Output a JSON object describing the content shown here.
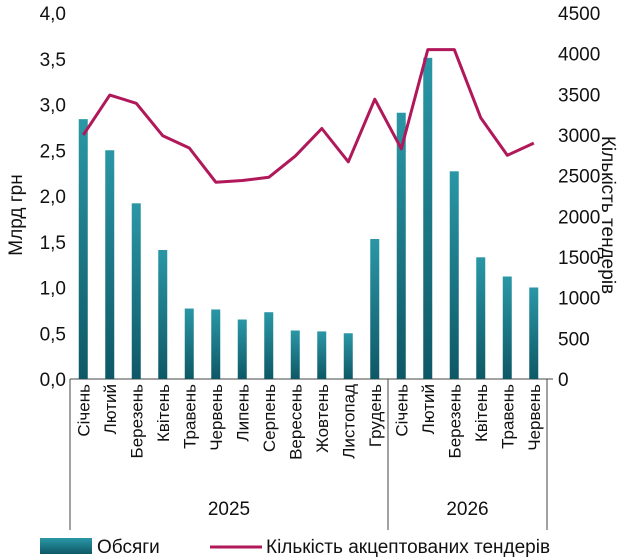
{
  "chart_data": {
    "type": "bar",
    "categories": [
      "Січень",
      "Лютий",
      "Березень",
      "Квітень",
      "Травень",
      "Червень",
      "Липень",
      "Серпень",
      "Вересень",
      "Жовтень",
      "Листопад",
      "Грудень",
      "Січень",
      "Лютий",
      "Березень",
      "Квітень",
      "Травень",
      "Червень"
    ],
    "groups": [
      {
        "label": "2025",
        "count": 12
      },
      {
        "label": "2026",
        "count": 6
      }
    ],
    "series": [
      {
        "name": "Обсяги",
        "type": "bar",
        "axis": "left",
        "values": [
          2.84,
          2.5,
          1.92,
          1.41,
          0.77,
          0.76,
          0.65,
          0.73,
          0.53,
          0.52,
          0.5,
          1.53,
          2.91,
          3.51,
          2.27,
          1.33,
          1.12,
          1.0
        ]
      },
      {
        "name": "Кількість акцептованих тендерів",
        "type": "line",
        "axis": "right",
        "values": [
          3000,
          3490,
          3390,
          2990,
          2840,
          2420,
          2440,
          2480,
          2740,
          3080,
          2670,
          3440,
          2830,
          4050,
          4050,
          3210,
          2750,
          2900
        ]
      }
    ],
    "ylabel": "Млрд грн",
    "ylabel_right": "Кількість тендерів",
    "ylim": [
      0,
      4.0
    ],
    "ylim_right": [
      0,
      4500
    ],
    "yticks": [
      "0,0",
      "0,5",
      "1,0",
      "1,5",
      "2,0",
      "2,5",
      "3,0",
      "3,5",
      "4,0"
    ],
    "yticks_right": [
      "0",
      "500",
      "1000",
      "1500",
      "2000",
      "2500",
      "3000",
      "3500",
      "4000",
      "4500"
    ],
    "grid": false,
    "legend_position": "bottom",
    "colors": {
      "bar_top": "#2a97a6",
      "bar_bottom": "#0e5866",
      "line": "#b0185a"
    }
  }
}
